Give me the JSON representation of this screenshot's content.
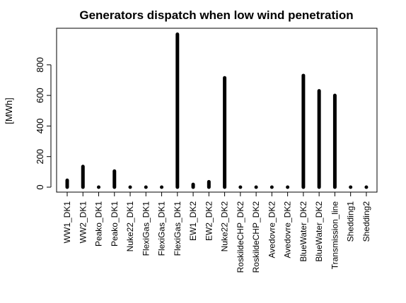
{
  "chart_data": {
    "type": "bar",
    "title": "Generators dispatch when low wind penetration",
    "xlabel": "",
    "ylabel": "[MWh]",
    "ylim": [
      0,
      1000
    ],
    "yticks": [
      0,
      200,
      400,
      600,
      800
    ],
    "grid": false,
    "legend": "none",
    "bar_color": "#000000",
    "categories": [
      "WW1_DK1",
      "WW2_DK1",
      "Peako_DK1",
      "Peako_DK1",
      "Nuke22_DK1",
      "FlexiGas_DK1",
      "FlexiGas_DK1",
      "FlexiGas_DK1",
      "EW1_DK2",
      "EW2_DK2",
      "Nuke22_DK2",
      "RoskildeCHP_DK2",
      "RoskildeCHP_DK2",
      "Avedovre_DK2",
      "Avedovre_DK2",
      "BlueWater_DK2",
      "BlueWater_DK2",
      "Transmission_line",
      "Shedding1",
      "Shedding2"
    ],
    "values": [
      45,
      135,
      0,
      105,
      0,
      0,
      0,
      1000,
      18,
      35,
      715,
      0,
      0,
      0,
      0,
      730,
      630,
      600,
      0,
      0
    ]
  }
}
